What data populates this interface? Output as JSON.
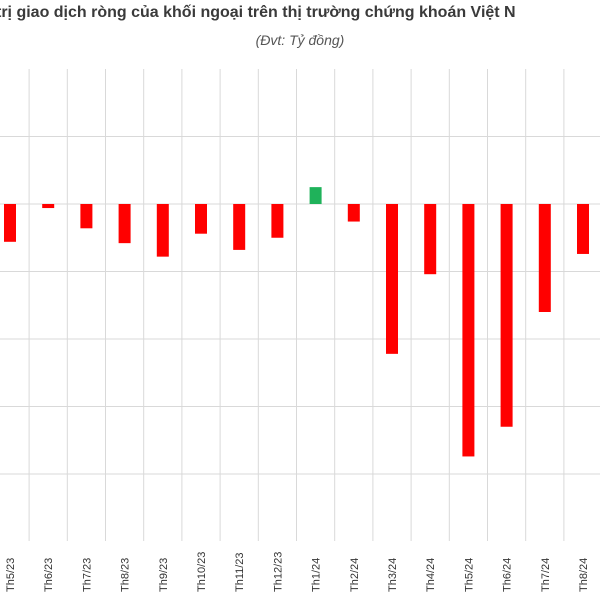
{
  "chart_data": {
    "type": "bar",
    "title": "trị giao dịch ròng của khối ngoại trên thị trường chứng khoán Việt N",
    "subtitle": "(Đvt: Tỷ đồng)",
    "categories": [
      "Th5/23",
      "Th6/23",
      "Th7/23",
      "Th8/23",
      "Th9/23",
      "Th10/23",
      "Th11/23",
      "Th12/23",
      "Th1/24",
      "Th2/24",
      "Th3/24",
      "Th4/24",
      "Th5/24",
      "Th6/24",
      "Th7/24",
      "Th8/24"
    ],
    "values": [
      -2800,
      -300,
      -1800,
      -2900,
      -3900,
      -2200,
      -3400,
      -2500,
      1250,
      -1300,
      -11100,
      -5200,
      -18700,
      -16500,
      -8000,
      -3700
    ],
    "ylim": [
      -20000,
      10000
    ],
    "grid": true,
    "colors": {
      "positive": "#1fb25a",
      "negative": "#ff0000",
      "grid": "#d9d9d9"
    }
  }
}
